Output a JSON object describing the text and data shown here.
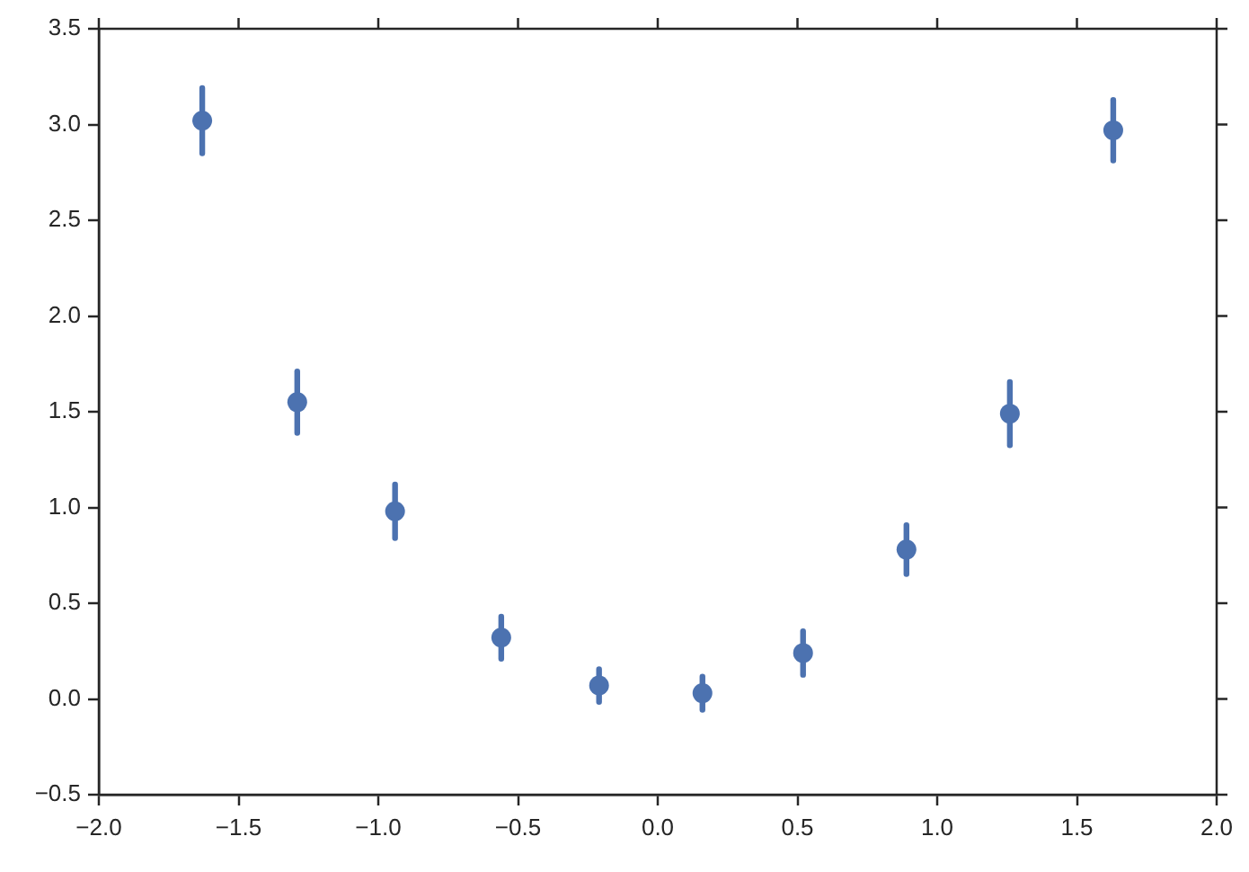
{
  "chart_data": {
    "type": "scatter",
    "x": [
      -1.63,
      -1.29,
      -0.94,
      -0.56,
      -0.21,
      0.16,
      0.52,
      0.89,
      1.26,
      1.63
    ],
    "values": [
      3.02,
      1.55,
      0.98,
      0.32,
      0.07,
      0.03,
      0.24,
      0.78,
      1.49,
      2.97
    ],
    "errors": [
      0.17,
      0.16,
      0.14,
      0.11,
      0.085,
      0.086,
      0.114,
      0.128,
      0.165,
      0.158
    ],
    "color": "#4c72b0",
    "marker": "circle",
    "grid": false,
    "xlim": [
      -2,
      2
    ],
    "xticks": [
      {
        "value": -2,
        "label": "−2.0"
      },
      {
        "value": -1.5,
        "label": "−1.5"
      },
      {
        "value": -1,
        "label": "−1.0"
      },
      {
        "value": -0.5,
        "label": "−0.5"
      },
      {
        "value": 0,
        "label": "0.0"
      },
      {
        "value": 0.5,
        "label": "0.5"
      },
      {
        "value": 1,
        "label": "1.0"
      },
      {
        "value": 1.5,
        "label": "1.5"
      },
      {
        "value": 2,
        "label": "2.0"
      }
    ],
    "ylim": [
      -0.5,
      3.5
    ],
    "yticks": [
      {
        "value": -0.5,
        "label": "−0.5"
      },
      {
        "value": 0,
        "label": "0.0"
      },
      {
        "value": 0.5,
        "label": "0.5"
      },
      {
        "value": 1,
        "label": "1.0"
      },
      {
        "value": 1.5,
        "label": "1.5"
      },
      {
        "value": 2,
        "label": "2.0"
      },
      {
        "value": 2.5,
        "label": "2.5"
      },
      {
        "value": 3,
        "label": "3.0"
      },
      {
        "value": 3.5,
        "label": "3.5"
      }
    ]
  }
}
